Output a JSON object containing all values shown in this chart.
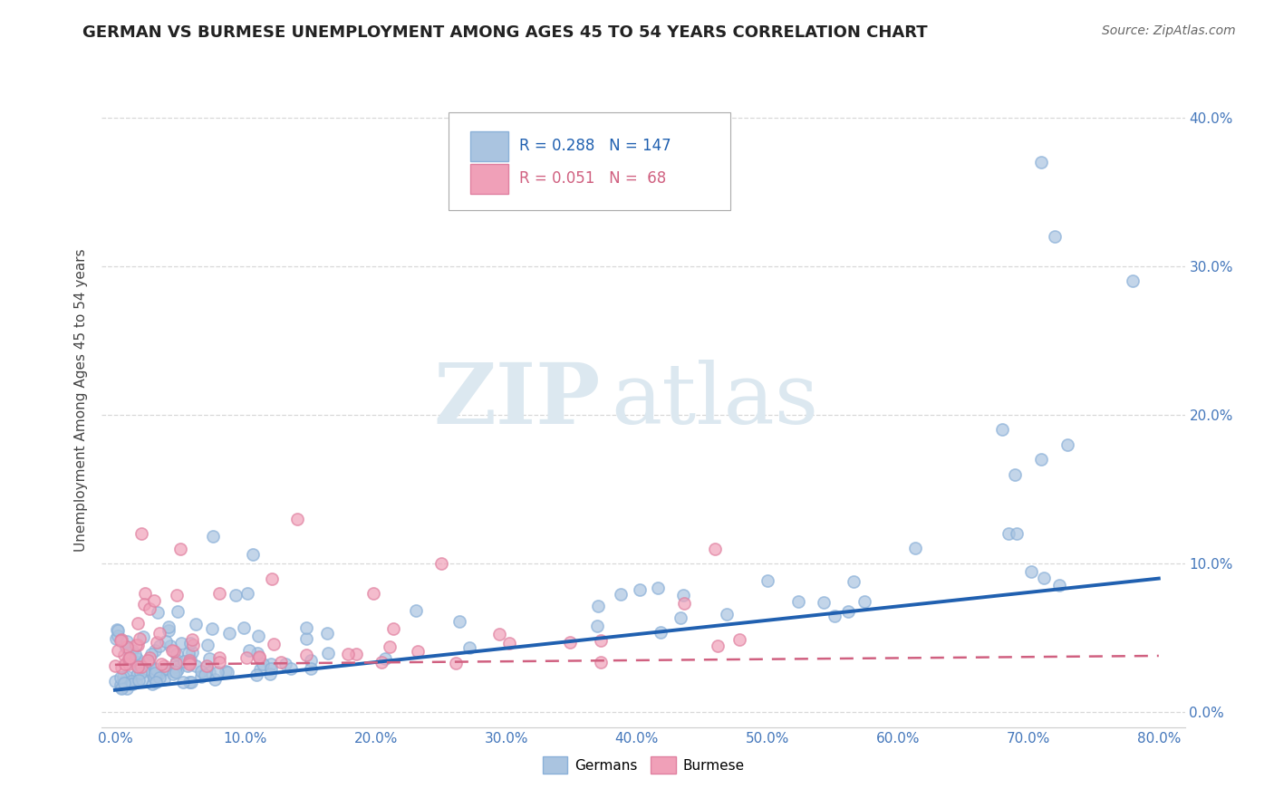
{
  "title": "GERMAN VS BURMESE UNEMPLOYMENT AMONG AGES 45 TO 54 YEARS CORRELATION CHART",
  "source": "Source: ZipAtlas.com",
  "xlabel_ticks": [
    "0.0%",
    "10.0%",
    "20.0%",
    "30.0%",
    "40.0%",
    "50.0%",
    "60.0%",
    "70.0%",
    "80.0%"
  ],
  "xlabel_vals": [
    0,
    10,
    20,
    30,
    40,
    50,
    60,
    70,
    80
  ],
  "ylabel_ticks": [
    "0.0%",
    "10.0%",
    "20.0%",
    "30.0%",
    "40.0%"
  ],
  "ylabel_vals": [
    0,
    10,
    20,
    30,
    40
  ],
  "ylabel_label": "Unemployment Among Ages 45 to 54 years",
  "xlim": [
    -1,
    82
  ],
  "ylim": [
    -1,
    43
  ],
  "german_R": 0.288,
  "german_N": 147,
  "burmese_R": 0.051,
  "burmese_N": 68,
  "german_color": "#aac4e0",
  "german_edge_color": "#8ab0d8",
  "german_line_color": "#2060b0",
  "burmese_color": "#f0a0b8",
  "burmese_edge_color": "#e080a0",
  "burmese_line_color": "#d06080",
  "watermark_zip": "ZIP",
  "watermark_atlas": "atlas",
  "watermark_color": "#dce8f0",
  "title_fontsize": 13,
  "source_fontsize": 10,
  "legend_fontsize": 12,
  "axis_tick_fontsize": 11,
  "axis_label_fontsize": 11,
  "background_color": "#ffffff",
  "grid_color": "#d8d8d8",
  "legend_german_text": "R = 0.288   N = 147",
  "legend_burmese_text": "R = 0.051   N =  68",
  "bottom_legend_german": "Germans",
  "bottom_legend_burmese": "Burmese",
  "german_trend_x0": 0,
  "german_trend_y0": 1.5,
  "german_trend_x1": 80,
  "german_trend_y1": 9.0,
  "burmese_trend_x0": 0,
  "burmese_trend_y0": 3.2,
  "burmese_trend_x1": 80,
  "burmese_trend_y1": 3.8
}
